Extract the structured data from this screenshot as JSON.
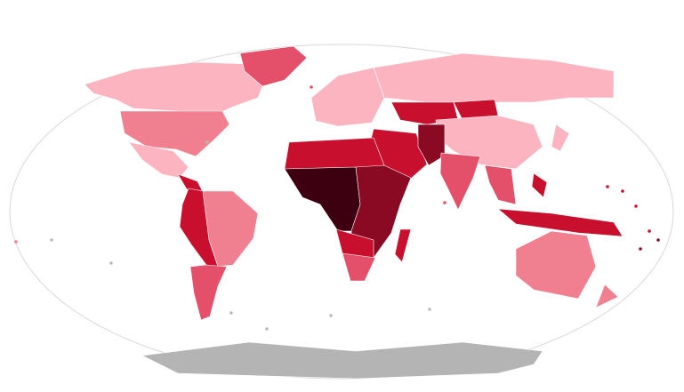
{
  "map": {
    "projection": "robinson",
    "colors": {
      "level_1": "#fbb4c0",
      "level_2": "#f0808f",
      "level_3": "#e4506a",
      "level_4": "#c8102e",
      "level_5": "#8a0a24",
      "level_6": "#3c0010",
      "no_data": "#b4b4b4",
      "outline": "#d8d8d8"
    },
    "regions": [
      {
        "id": "canada-alaska",
        "level": "level_1"
      },
      {
        "id": "greenland",
        "level": "level_3"
      },
      {
        "id": "usa",
        "level": "level_2"
      },
      {
        "id": "mexico",
        "level": "level_1"
      },
      {
        "id": "central-america",
        "level": "level_4"
      },
      {
        "id": "south-america-east",
        "level": "level_2"
      },
      {
        "id": "south-america-west",
        "level": "level_4"
      },
      {
        "id": "south-america-south",
        "level": "level_3"
      },
      {
        "id": "europe",
        "level": "level_1"
      },
      {
        "id": "russia",
        "level": "level_1"
      },
      {
        "id": "kazakhstan",
        "level": "level_4"
      },
      {
        "id": "mongolia",
        "level": "level_4"
      },
      {
        "id": "china",
        "level": "level_1"
      },
      {
        "id": "middle-east",
        "level": "level_4"
      },
      {
        "id": "afghanistan-pakistan",
        "level": "level_5"
      },
      {
        "id": "india",
        "level": "level_3"
      },
      {
        "id": "southeast-asia",
        "level": "level_3"
      },
      {
        "id": "indonesia-png",
        "level": "level_4"
      },
      {
        "id": "philippines",
        "level": "level_4"
      },
      {
        "id": "japan",
        "level": "level_1"
      },
      {
        "id": "australia",
        "level": "level_2"
      },
      {
        "id": "new-zealand",
        "level": "level_2"
      },
      {
        "id": "north-africa",
        "level": "level_4"
      },
      {
        "id": "central-africa",
        "level": "level_6"
      },
      {
        "id": "east-africa",
        "level": "level_5"
      },
      {
        "id": "southern-africa",
        "level": "level_4"
      },
      {
        "id": "south-africa",
        "level": "level_3"
      },
      {
        "id": "madagascar",
        "level": "level_4"
      },
      {
        "id": "antarctica",
        "level": "no_data"
      }
    ]
  }
}
